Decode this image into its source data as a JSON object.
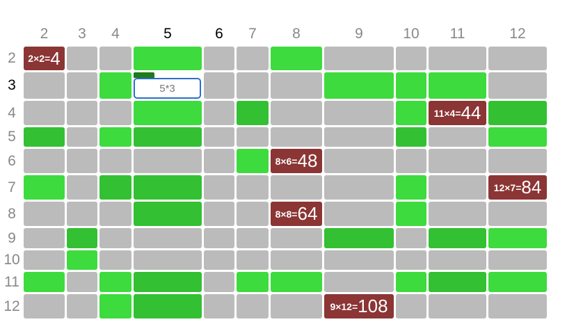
{
  "columns": [
    {
      "label": "2",
      "active": false
    },
    {
      "label": "3",
      "active": false
    },
    {
      "label": "4",
      "active": false
    },
    {
      "label": "5",
      "active": true
    },
    {
      "label": "6",
      "active": true
    },
    {
      "label": "7",
      "active": false
    },
    {
      "label": "8",
      "active": false
    },
    {
      "label": "9",
      "active": false
    },
    {
      "label": "10",
      "active": false
    },
    {
      "label": "11",
      "active": false
    },
    {
      "label": "12",
      "active": false
    }
  ],
  "rows": [
    {
      "label": "2",
      "active": false,
      "cells": [
        {
          "color": "#8b3535",
          "expr": "2×2=",
          "result": "4"
        },
        {
          "color": "#bbbbbb"
        },
        {
          "color": "#bbbbbb"
        },
        {
          "color": "#3ddb3d"
        },
        {
          "color": "#bbbbbb"
        },
        {
          "color": "#bbbbbb"
        },
        {
          "color": "#3ddb3d"
        },
        {
          "color": "#bbbbbb"
        },
        {
          "color": "#bbbbbb"
        },
        {
          "color": "#bbbbbb"
        },
        {
          "color": "#bbbbbb"
        }
      ]
    },
    {
      "label": "3",
      "active": true,
      "cells": [
        {
          "color": "#bbbbbb"
        },
        {
          "color": "#bbbbbb"
        },
        {
          "color": "#3ddb3d"
        },
        {
          "color": "#ffffff",
          "input": "5*3"
        },
        {
          "color": "#bbbbbb"
        },
        {
          "color": "#bbbbbb"
        },
        {
          "color": "#bbbbbb"
        },
        {
          "color": "#3ddb3d"
        },
        {
          "color": "#3ddb3d"
        },
        {
          "color": "#3ddb3d"
        },
        {
          "color": "#bbbbbb"
        }
      ]
    },
    {
      "label": "4",
      "active": false,
      "cells": [
        {
          "color": "#bbbbbb"
        },
        {
          "color": "#bbbbbb"
        },
        {
          "color": "#bbbbbb"
        },
        {
          "color": "#3ddb3d"
        },
        {
          "color": "#bbbbbb"
        },
        {
          "color": "#33c033"
        },
        {
          "color": "#bbbbbb"
        },
        {
          "color": "#bbbbbb"
        },
        {
          "color": "#3ddb3d"
        },
        {
          "color": "#8b3535",
          "expr": "11×4=",
          "result": "44"
        },
        {
          "color": "#33c033"
        }
      ]
    },
    {
      "label": "5",
      "active": false,
      "cells": [
        {
          "color": "#33c033"
        },
        {
          "color": "#bbbbbb"
        },
        {
          "color": "#3ddb3d"
        },
        {
          "color": "#33c033"
        },
        {
          "color": "#bbbbbb"
        },
        {
          "color": "#bbbbbb"
        },
        {
          "color": "#bbbbbb"
        },
        {
          "color": "#bbbbbb"
        },
        {
          "color": "#33c033"
        },
        {
          "color": "#bbbbbb"
        },
        {
          "color": "#3ddb3d"
        }
      ]
    },
    {
      "label": "6",
      "active": false,
      "cells": [
        {
          "color": "#bbbbbb"
        },
        {
          "color": "#bbbbbb"
        },
        {
          "color": "#bbbbbb"
        },
        {
          "color": "#bbbbbb"
        },
        {
          "color": "#bbbbbb"
        },
        {
          "color": "#3ddb3d"
        },
        {
          "color": "#8b3535",
          "expr": "8×6=",
          "result": "48"
        },
        {
          "color": "#bbbbbb"
        },
        {
          "color": "#bbbbbb"
        },
        {
          "color": "#bbbbbb"
        },
        {
          "color": "#bbbbbb"
        }
      ]
    },
    {
      "label": "7",
      "active": false,
      "cells": [
        {
          "color": "#3ddb3d"
        },
        {
          "color": "#bbbbbb"
        },
        {
          "color": "#33c033"
        },
        {
          "color": "#33c033"
        },
        {
          "color": "#bbbbbb"
        },
        {
          "color": "#bbbbbb"
        },
        {
          "color": "#bbbbbb"
        },
        {
          "color": "#bbbbbb"
        },
        {
          "color": "#3ddb3d"
        },
        {
          "color": "#bbbbbb"
        },
        {
          "color": "#8b3535",
          "expr": "12×7=",
          "result": "84"
        }
      ]
    },
    {
      "label": "8",
      "active": false,
      "cells": [
        {
          "color": "#bbbbbb"
        },
        {
          "color": "#bbbbbb"
        },
        {
          "color": "#bbbbbb"
        },
        {
          "color": "#33c033"
        },
        {
          "color": "#bbbbbb"
        },
        {
          "color": "#bbbbbb"
        },
        {
          "color": "#8b3535",
          "expr": "8×8=",
          "result": "64"
        },
        {
          "color": "#bbbbbb"
        },
        {
          "color": "#3ddb3d"
        },
        {
          "color": "#bbbbbb"
        },
        {
          "color": "#bbbbbb"
        }
      ]
    },
    {
      "label": "9",
      "active": false,
      "cells": [
        {
          "color": "#bbbbbb"
        },
        {
          "color": "#33c033"
        },
        {
          "color": "#bbbbbb"
        },
        {
          "color": "#bbbbbb"
        },
        {
          "color": "#bbbbbb"
        },
        {
          "color": "#bbbbbb"
        },
        {
          "color": "#bbbbbb"
        },
        {
          "color": "#33c033"
        },
        {
          "color": "#bbbbbb"
        },
        {
          "color": "#33c033"
        },
        {
          "color": "#3ddb3d"
        }
      ]
    },
    {
      "label": "10",
      "active": false,
      "cells": [
        {
          "color": "#bbbbbb"
        },
        {
          "color": "#3ddb3d"
        },
        {
          "color": "#bbbbbb"
        },
        {
          "color": "#bbbbbb"
        },
        {
          "color": "#bbbbbb"
        },
        {
          "color": "#bbbbbb"
        },
        {
          "color": "#bbbbbb"
        },
        {
          "color": "#bbbbbb"
        },
        {
          "color": "#bbbbbb"
        },
        {
          "color": "#bbbbbb"
        },
        {
          "color": "#bbbbbb"
        }
      ]
    },
    {
      "label": "11",
      "active": false,
      "cells": [
        {
          "color": "#3ddb3d"
        },
        {
          "color": "#bbbbbb"
        },
        {
          "color": "#3ddb3d"
        },
        {
          "color": "#33c033"
        },
        {
          "color": "#bbbbbb"
        },
        {
          "color": "#3ddb3d"
        },
        {
          "color": "#3ddb3d"
        },
        {
          "color": "#bbbbbb"
        },
        {
          "color": "#3ddb3d"
        },
        {
          "color": "#33c033"
        },
        {
          "color": "#3ddb3d"
        }
      ]
    },
    {
      "label": "12",
      "active": false,
      "cells": [
        {
          "color": "#bbbbbb"
        },
        {
          "color": "#bbbbbb"
        },
        {
          "color": "#3ddb3d"
        },
        {
          "color": "#33c033"
        },
        {
          "color": "#bbbbbb"
        },
        {
          "color": "#bbbbbb"
        },
        {
          "color": "#bbbbbb"
        },
        {
          "color": "#8b3535",
          "expr": "9×12=",
          "result": "108"
        },
        {
          "color": "#bbbbbb"
        },
        {
          "color": "#bbbbbb"
        },
        {
          "color": "#bbbbbb"
        }
      ]
    }
  ]
}
